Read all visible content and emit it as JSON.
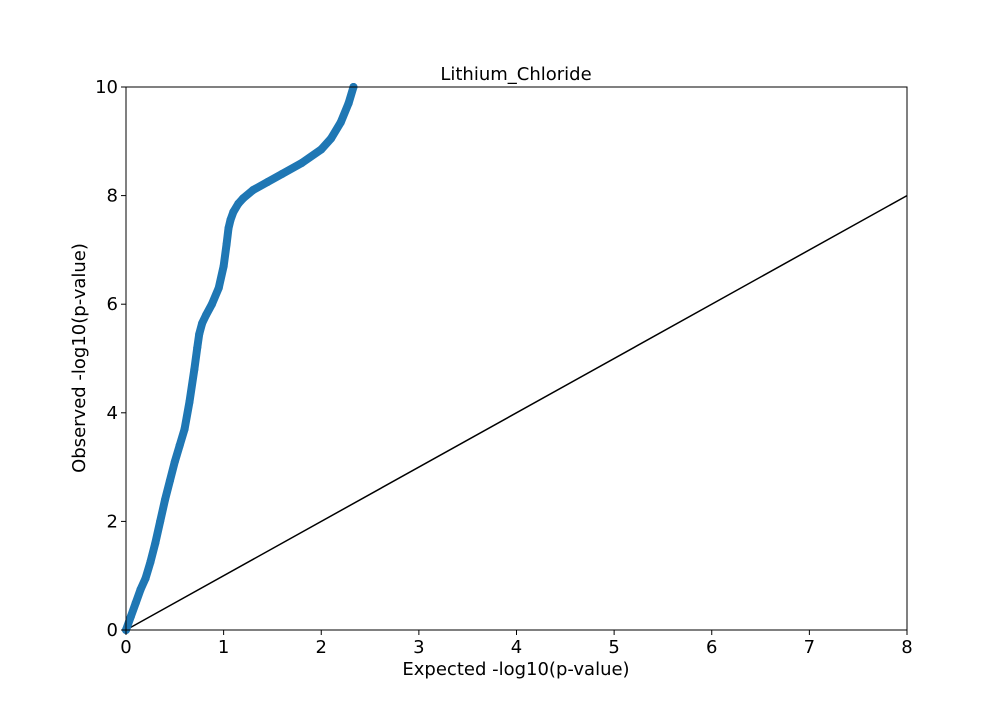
{
  "chart_data": {
    "type": "scatter",
    "title": "Lithium_Chloride",
    "xlabel": "Expected -log10(p-value)",
    "ylabel": "Observed -log10(p-value)",
    "xlim": [
      0,
      8
    ],
    "ylim": [
      0,
      10
    ],
    "xticks": [
      0,
      1,
      2,
      3,
      4,
      5,
      6,
      7,
      8
    ],
    "yticks": [
      0,
      2,
      4,
      6,
      8,
      10
    ],
    "grid": false,
    "colors": {
      "points": "#1f77b4",
      "reference_line": "#000000"
    },
    "reference_line": {
      "x": [
        0,
        8
      ],
      "y": [
        0,
        8
      ]
    },
    "series": [
      {
        "x": [
          0.0,
          0.05,
          0.1,
          0.15,
          0.2,
          0.25,
          0.3,
          0.35,
          0.4,
          0.45,
          0.5,
          0.55,
          0.6,
          0.65,
          0.7,
          0.73,
          0.75,
          0.78,
          0.82,
          0.88,
          0.95,
          1.0,
          1.03,
          1.05,
          1.07,
          1.1,
          1.15,
          1.2,
          1.3,
          1.45,
          1.6,
          1.8,
          2.0,
          2.1,
          2.2,
          2.28,
          2.33
        ],
        "y": [
          0.0,
          0.25,
          0.5,
          0.75,
          0.95,
          1.25,
          1.6,
          2.0,
          2.4,
          2.75,
          3.1,
          3.4,
          3.7,
          4.2,
          4.8,
          5.2,
          5.45,
          5.65,
          5.8,
          6.0,
          6.3,
          6.7,
          7.1,
          7.4,
          7.55,
          7.7,
          7.85,
          7.95,
          8.1,
          8.25,
          8.4,
          8.6,
          8.85,
          9.05,
          9.35,
          9.7,
          10.0
        ]
      }
    ]
  }
}
